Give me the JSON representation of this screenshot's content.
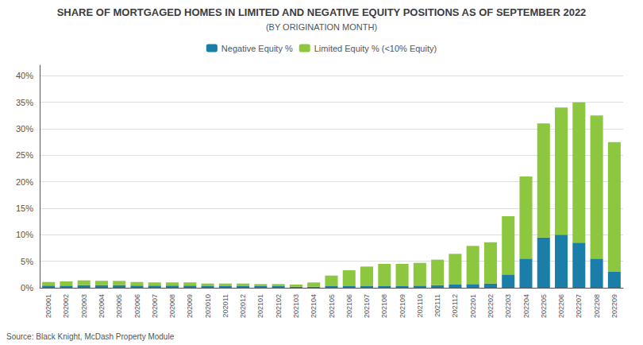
{
  "chart_data": {
    "type": "bar",
    "title": "SHARE OF MORTGAGED HOMES IN LIMITED AND NEGATIVE EQUITY POSITIONS AS OF SEPTEMBER 2022",
    "subtitle": "(BY ORIGINATION MONTH)",
    "annotations": [
      "Source: Black Knight, McDash Property Module"
    ],
    "categories": [
      "202001",
      "202002",
      "202003",
      "202004",
      "202005",
      "202006",
      "202007",
      "202008",
      "202009",
      "202010",
      "202011",
      "202012",
      "202101",
      "202102",
      "202103",
      "202104",
      "202105",
      "202106",
      "202107",
      "202108",
      "202109",
      "202110",
      "202111",
      "202112",
      "202201",
      "202202",
      "202203",
      "202204",
      "202205",
      "202206",
      "202207",
      "202208",
      "202209"
    ],
    "series": [
      {
        "name": "Negative Equity %",
        "color": "#1a7ea8",
        "values": [
          0.4,
          0.4,
          0.5,
          0.5,
          0.5,
          0.4,
          0.4,
          0.4,
          0.4,
          0.3,
          0.3,
          0.3,
          0.3,
          0.3,
          0.2,
          0.2,
          0.3,
          0.3,
          0.3,
          0.3,
          0.3,
          0.4,
          0.5,
          0.6,
          0.7,
          0.8,
          2.5,
          5.5,
          9.5,
          10.0,
          8.5,
          5.5,
          3.0
        ]
      },
      {
        "name": "Limited Equity % (<10% Equity)",
        "color": "#8dc63f",
        "values": [
          0.7,
          0.8,
          0.9,
          0.8,
          0.8,
          0.7,
          0.6,
          0.6,
          0.6,
          0.5,
          0.5,
          0.5,
          0.4,
          0.4,
          0.4,
          0.8,
          2.0,
          3.0,
          3.7,
          4.2,
          4.2,
          4.3,
          4.8,
          5.8,
          7.2,
          7.8,
          11.0,
          15.5,
          21.5,
          24.0,
          26.5,
          27.0,
          24.5
        ]
      }
    ],
    "stacked": true,
    "grid": true,
    "legend": "top",
    "ylim": [
      0,
      42
    ],
    "yticks": [
      {
        "value": 0,
        "label": "0%"
      },
      {
        "value": 5,
        "label": "5%"
      },
      {
        "value": 10,
        "label": "10%"
      },
      {
        "value": 15,
        "label": "15%"
      },
      {
        "value": 20,
        "label": "20%"
      },
      {
        "value": 25,
        "label": "25%"
      },
      {
        "value": 30,
        "label": "30%"
      },
      {
        "value": 35,
        "label": "35%"
      },
      {
        "value": 40,
        "label": "40%"
      }
    ]
  }
}
